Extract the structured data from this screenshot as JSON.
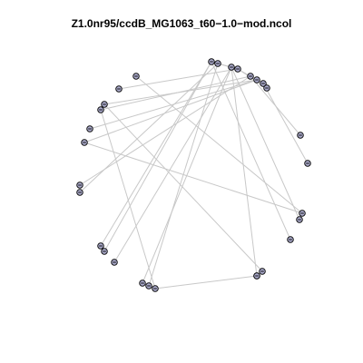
{
  "title": "Z1.0nr95/ccdB_MG1063_t60−1.0−mod.ncol",
  "graph": {
    "colors": {
      "edge": "#c8c8c8",
      "node_fill": "#a8a8c8",
      "node_stroke": "#000000",
      "node_dash": "#000000"
    },
    "nodes": [
      "n1",
      "n2",
      "n3",
      "n4",
      "n5",
      "n6",
      "n7",
      "n8",
      "n9",
      "n10",
      "n11",
      "n12",
      "n13",
      "n14",
      "n15",
      "n16",
      "n17",
      "n18",
      "n19",
      "n20",
      "n21",
      "n22",
      "n23",
      "n24",
      "n25",
      "n26",
      "n27",
      "n28",
      "n29",
      "n30"
    ],
    "edges": [
      [
        "n10",
        "n13"
      ],
      [
        "n10",
        "n14"
      ],
      [
        "n10",
        "n7"
      ],
      [
        "n10",
        "n8"
      ],
      [
        "n11",
        "n4"
      ],
      [
        "n12",
        "n6"
      ],
      [
        "n12",
        "n5"
      ],
      [
        "n11",
        "n17"
      ],
      [
        "n13",
        "n16"
      ],
      [
        "n9",
        "n20"
      ],
      [
        "n12",
        "n3"
      ],
      [
        "n10",
        "n2"
      ],
      [
        "n7",
        "n21"
      ],
      [
        "n8",
        "n28"
      ],
      [
        "n9",
        "n30"
      ],
      [
        "n9",
        "n27"
      ],
      [
        "n9",
        "n24"
      ],
      [
        "n4",
        "n29"
      ],
      [
        "n1",
        "n19"
      ],
      [
        "n6",
        "n19"
      ],
      [
        "n7",
        "n23"
      ],
      [
        "n7",
        "n22"
      ],
      [
        "n8",
        "n18"
      ],
      [
        "n3",
        "n25"
      ],
      [
        "n26",
        "n29"
      ],
      [
        "n11",
        "n15"
      ]
    ]
  }
}
